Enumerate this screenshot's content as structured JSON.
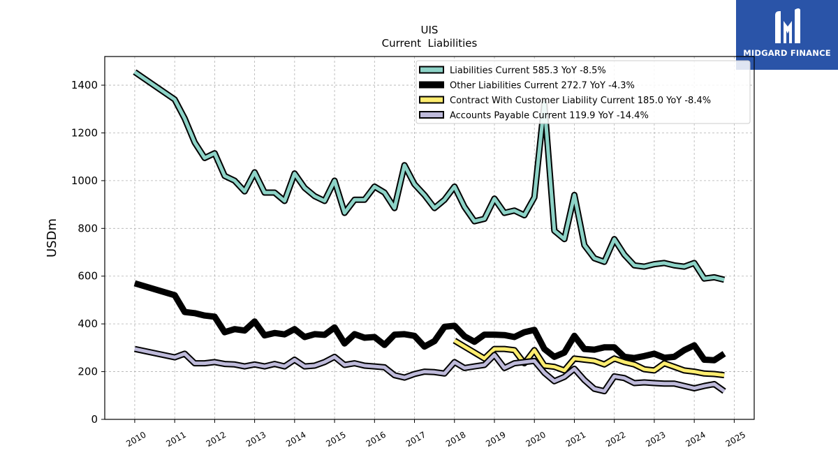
{
  "logo": {
    "text": "MIDGARD FINANCE",
    "color": "#2a54a8",
    "icon": "midgard-logo-icon"
  },
  "chart_data": {
    "type": "line",
    "title": "UIS",
    "subtitle": "Current  Liabilities",
    "xlabel": "",
    "ylabel": "USDm",
    "xlim": [
      2009.25,
      2025.5
    ],
    "ylim": [
      0,
      1520
    ],
    "xticks": [
      2010,
      2011,
      2012,
      2013,
      2014,
      2015,
      2016,
      2017,
      2018,
      2019,
      2020,
      2021,
      2022,
      2023,
      2024,
      2025
    ],
    "yticks": [
      0,
      200,
      400,
      600,
      800,
      1000,
      1200,
      1400
    ],
    "grid": true,
    "legend_position": "top-right",
    "series": [
      {
        "name": "Liabilities Current  585.3 YoY -8.5%",
        "color": "#8dd3c7",
        "style": "outlined",
        "x": [
          2010.0,
          2011.0,
          2011.25,
          2011.5,
          2011.75,
          2012.0,
          2012.25,
          2012.5,
          2012.75,
          2013.0,
          2013.25,
          2013.5,
          2013.75,
          2014.0,
          2014.25,
          2014.5,
          2014.75,
          2015.0,
          2015.25,
          2015.5,
          2015.75,
          2016.0,
          2016.25,
          2016.5,
          2016.75,
          2017.0,
          2017.25,
          2017.5,
          2017.75,
          2018.0,
          2018.25,
          2018.5,
          2018.75,
          2019.0,
          2019.25,
          2019.5,
          2019.75,
          2020.0,
          2020.25,
          2020.5,
          2020.75,
          2021.0,
          2021.25,
          2021.5,
          2021.75,
          2022.0,
          2022.25,
          2022.5,
          2022.75,
          2023.0,
          2023.25,
          2023.5,
          2023.75,
          2024.0,
          2024.25,
          2024.5,
          2024.75
        ],
        "values": [
          1455,
          1340,
          1260,
          1160,
          1095,
          1115,
          1020,
          1000,
          955,
          1035,
          950,
          950,
          915,
          1030,
          970,
          935,
          915,
          1000,
          865,
          920,
          920,
          975,
          950,
          885,
          1065,
          985,
          940,
          885,
          920,
          975,
          890,
          830,
          840,
          925,
          865,
          875,
          855,
          930,
          1325,
          790,
          755,
          940,
          730,
          675,
          660,
          755,
          690,
          645,
          640,
          650,
          655,
          645,
          640,
          655,
          590,
          595,
          585
        ]
      },
      {
        "name": "Other Liabilities Current  272.7 YoY -4.3%",
        "color": "#000000",
        "style": "thick",
        "x": [
          2010.0,
          2011.0,
          2011.25,
          2011.5,
          2011.75,
          2012.0,
          2012.25,
          2012.5,
          2012.75,
          2013.0,
          2013.25,
          2013.5,
          2013.75,
          2014.0,
          2014.25,
          2014.5,
          2014.75,
          2015.0,
          2015.25,
          2015.5,
          2015.75,
          2016.0,
          2016.25,
          2016.5,
          2016.75,
          2017.0,
          2017.25,
          2017.5,
          2017.75,
          2018.0,
          2018.25,
          2018.5,
          2018.75,
          2019.0,
          2019.25,
          2019.5,
          2019.75,
          2020.0,
          2020.25,
          2020.5,
          2020.75,
          2021.0,
          2021.25,
          2021.5,
          2021.75,
          2022.0,
          2022.25,
          2022.5,
          2022.75,
          2023.0,
          2023.25,
          2023.5,
          2023.75,
          2024.0,
          2024.25,
          2024.5,
          2024.75
        ],
        "values": [
          570,
          520,
          450,
          445,
          435,
          430,
          365,
          378,
          372,
          410,
          352,
          362,
          356,
          378,
          345,
          357,
          354,
          385,
          318,
          357,
          342,
          345,
          312,
          355,
          357,
          350,
          305,
          328,
          388,
          392,
          348,
          325,
          355,
          355,
          353,
          345,
          365,
          375,
          295,
          262,
          280,
          350,
          295,
          292,
          302,
          302,
          262,
          257,
          265,
          275,
          258,
          262,
          290,
          310,
          250,
          248,
          275
        ]
      },
      {
        "name": "Contract With Customer Liability Current  185.0 YoY -8.4%",
        "color": "#ffed6f",
        "style": "outlined",
        "x": [
          2018.0,
          2018.25,
          2018.5,
          2018.75,
          2019.0,
          2019.25,
          2019.5,
          2019.75,
          2020.0,
          2020.25,
          2020.5,
          2020.75,
          2021.0,
          2021.25,
          2021.5,
          2021.75,
          2022.0,
          2022.25,
          2022.5,
          2022.75,
          2023.0,
          2023.25,
          2023.5,
          2023.75,
          2024.0,
          2024.25,
          2024.5,
          2024.75
        ],
        "values": [
          330,
          305,
          280,
          255,
          295,
          295,
          290,
          235,
          290,
          225,
          220,
          205,
          255,
          250,
          245,
          230,
          255,
          240,
          230,
          210,
          205,
          235,
          220,
          205,
          200,
          192,
          190,
          185
        ]
      },
      {
        "name": "Accounts Payable Current  119.9 YoY -14.4%",
        "color": "#bebada",
        "style": "outlined",
        "x": [
          2010.0,
          2011.0,
          2011.25,
          2011.5,
          2011.75,
          2012.0,
          2012.25,
          2012.5,
          2012.75,
          2013.0,
          2013.25,
          2013.5,
          2013.75,
          2014.0,
          2014.25,
          2014.5,
          2014.75,
          2015.0,
          2015.25,
          2015.5,
          2015.75,
          2016.0,
          2016.25,
          2016.5,
          2016.75,
          2017.0,
          2017.25,
          2017.5,
          2017.75,
          2018.0,
          2018.25,
          2018.5,
          2018.75,
          2019.0,
          2019.25,
          2019.5,
          2019.75,
          2020.0,
          2020.25,
          2020.5,
          2020.75,
          2021.0,
          2021.25,
          2021.5,
          2021.75,
          2022.0,
          2022.25,
          2022.5,
          2022.75,
          2023.0,
          2023.25,
          2023.5,
          2023.75,
          2024.0,
          2024.25,
          2024.5,
          2024.75
        ],
        "values": [
          295,
          260,
          275,
          235,
          235,
          240,
          232,
          230,
          222,
          230,
          222,
          232,
          222,
          250,
          222,
          225,
          240,
          262,
          228,
          235,
          225,
          222,
          218,
          185,
          175,
          190,
          200,
          198,
          192,
          240,
          215,
          222,
          228,
          270,
          215,
          235,
          240,
          245,
          195,
          160,
          178,
          212,
          165,
          128,
          118,
          180,
          173,
          152,
          155,
          152,
          150,
          150,
          140,
          130,
          140,
          148,
          118
        ]
      }
    ]
  }
}
